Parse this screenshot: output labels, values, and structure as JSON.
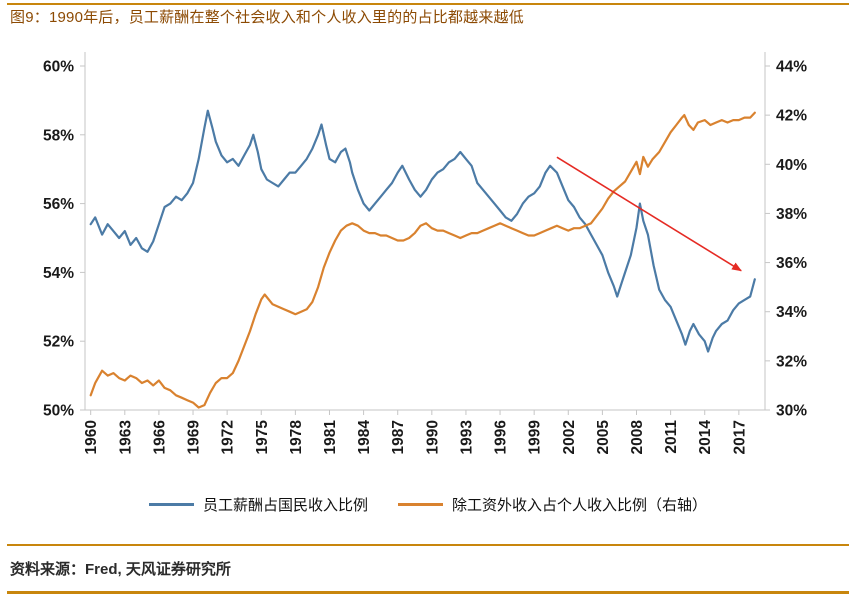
{
  "page": {
    "title": "图9：1990年后，员工薪酬在整个社会收入和个人收入里的的占比都越来越低",
    "source": "资料来源：Fred, 天风证券研究所",
    "accent_color": "#C8860D"
  },
  "chart_data": {
    "type": "line",
    "title": "图9：1990年后，员工薪酬在整个社会收入和个人收入里的的占比都越来越低",
    "x_range": [
      1959.5,
      2019.3
    ],
    "x_ticks": [
      1960,
      1963,
      1966,
      1969,
      1972,
      1975,
      1978,
      1981,
      1984,
      1987,
      1990,
      1993,
      1996,
      1999,
      2002,
      2005,
      2008,
      2011,
      2014,
      2017
    ],
    "left_axis": {
      "min": 50,
      "max": 60,
      "ticks": [
        60,
        58,
        56,
        54,
        52,
        50
      ],
      "format": "percent"
    },
    "right_axis": {
      "min": 30,
      "max": 44,
      "ticks": [
        44,
        42,
        40,
        38,
        36,
        34,
        32,
        30
      ],
      "format": "percent"
    },
    "grid": false,
    "legend_position": "bottom",
    "axis_color": "#c6c6c6",
    "tick_label_color": "#1a1a1a",
    "annotation_arrow": {
      "axis": "left",
      "from": [
        2001,
        57.35
      ],
      "to": [
        2017.2,
        54.05
      ],
      "color": "#e52b24"
    },
    "series": [
      {
        "name": "employee-compensation-share-of-national-income",
        "label": "员工薪酬占国民收入比例",
        "color": "#4C7BA6",
        "axis": "left",
        "points": [
          [
            1960,
            55.4
          ],
          [
            1960.4,
            55.6
          ],
          [
            1961,
            55.1
          ],
          [
            1961.5,
            55.4
          ],
          [
            1962,
            55.2
          ],
          [
            1962.5,
            55.0
          ],
          [
            1963,
            55.2
          ],
          [
            1963.5,
            54.8
          ],
          [
            1964,
            55.0
          ],
          [
            1964.5,
            54.7
          ],
          [
            1965,
            54.6
          ],
          [
            1965.5,
            54.9
          ],
          [
            1966,
            55.4
          ],
          [
            1966.5,
            55.9
          ],
          [
            1967,
            56.0
          ],
          [
            1967.5,
            56.2
          ],
          [
            1968,
            56.1
          ],
          [
            1968.5,
            56.3
          ],
          [
            1969,
            56.6
          ],
          [
            1969.5,
            57.3
          ],
          [
            1970,
            58.2
          ],
          [
            1970.3,
            58.7
          ],
          [
            1970.7,
            58.2
          ],
          [
            1971,
            57.8
          ],
          [
            1971.5,
            57.4
          ],
          [
            1972,
            57.2
          ],
          [
            1972.5,
            57.3
          ],
          [
            1973,
            57.1
          ],
          [
            1973.5,
            57.4
          ],
          [
            1974,
            57.7
          ],
          [
            1974.3,
            58.0
          ],
          [
            1974.7,
            57.5
          ],
          [
            1975,
            57.0
          ],
          [
            1975.5,
            56.7
          ],
          [
            1976,
            56.6
          ],
          [
            1976.5,
            56.5
          ],
          [
            1977,
            56.7
          ],
          [
            1977.5,
            56.9
          ],
          [
            1978,
            56.9
          ],
          [
            1978.5,
            57.1
          ],
          [
            1979,
            57.3
          ],
          [
            1979.5,
            57.6
          ],
          [
            1980,
            58.0
          ],
          [
            1980.3,
            58.3
          ],
          [
            1980.7,
            57.7
          ],
          [
            1981,
            57.3
          ],
          [
            1981.5,
            57.2
          ],
          [
            1982,
            57.5
          ],
          [
            1982.4,
            57.6
          ],
          [
            1982.8,
            57.2
          ],
          [
            1983,
            56.9
          ],
          [
            1983.5,
            56.4
          ],
          [
            1984,
            56.0
          ],
          [
            1984.5,
            55.8
          ],
          [
            1985,
            56.0
          ],
          [
            1985.5,
            56.2
          ],
          [
            1986,
            56.4
          ],
          [
            1986.5,
            56.6
          ],
          [
            1987,
            56.9
          ],
          [
            1987.4,
            57.1
          ],
          [
            1988,
            56.7
          ],
          [
            1988.5,
            56.4
          ],
          [
            1989,
            56.2
          ],
          [
            1989.5,
            56.4
          ],
          [
            1990,
            56.7
          ],
          [
            1990.5,
            56.9
          ],
          [
            1991,
            57.0
          ],
          [
            1991.5,
            57.2
          ],
          [
            1992,
            57.3
          ],
          [
            1992.5,
            57.5
          ],
          [
            1993,
            57.3
          ],
          [
            1993.5,
            57.1
          ],
          [
            1994,
            56.6
          ],
          [
            1994.5,
            56.4
          ],
          [
            1995,
            56.2
          ],
          [
            1995.5,
            56.0
          ],
          [
            1996,
            55.8
          ],
          [
            1996.5,
            55.6
          ],
          [
            1997,
            55.5
          ],
          [
            1997.5,
            55.7
          ],
          [
            1998,
            56.0
          ],
          [
            1998.5,
            56.2
          ],
          [
            1999,
            56.3
          ],
          [
            1999.5,
            56.5
          ],
          [
            2000,
            56.9
          ],
          [
            2000.4,
            57.1
          ],
          [
            2001,
            56.9
          ],
          [
            2001.5,
            56.5
          ],
          [
            2002,
            56.1
          ],
          [
            2002.5,
            55.9
          ],
          [
            2003,
            55.6
          ],
          [
            2003.5,
            55.4
          ],
          [
            2004,
            55.1
          ],
          [
            2004.5,
            54.8
          ],
          [
            2005,
            54.5
          ],
          [
            2005.5,
            54.0
          ],
          [
            2006,
            53.6
          ],
          [
            2006.3,
            53.3
          ],
          [
            2006.7,
            53.7
          ],
          [
            2007,
            54.0
          ],
          [
            2007.5,
            54.5
          ],
          [
            2008,
            55.3
          ],
          [
            2008.3,
            56.0
          ],
          [
            2008.6,
            55.5
          ],
          [
            2009,
            55.1
          ],
          [
            2009.5,
            54.2
          ],
          [
            2010,
            53.5
          ],
          [
            2010.5,
            53.2
          ],
          [
            2011,
            53.0
          ],
          [
            2011.5,
            52.6
          ],
          [
            2012,
            52.2
          ],
          [
            2012.3,
            51.9
          ],
          [
            2012.7,
            52.3
          ],
          [
            2013,
            52.5
          ],
          [
            2013.5,
            52.2
          ],
          [
            2014,
            52.0
          ],
          [
            2014.3,
            51.7
          ],
          [
            2014.7,
            52.1
          ],
          [
            2015,
            52.3
          ],
          [
            2015.5,
            52.5
          ],
          [
            2016,
            52.6
          ],
          [
            2016.5,
            52.9
          ],
          [
            2017,
            53.1
          ],
          [
            2017.5,
            53.2
          ],
          [
            2018,
            53.3
          ],
          [
            2018.4,
            53.8
          ]
        ]
      },
      {
        "name": "non-wage-income-share-of-personal-income",
        "label": "除工资外收入占个人收入比例（右轴）",
        "color": "#D9822F",
        "axis": "right",
        "points": [
          [
            1960,
            30.6
          ],
          [
            1960.4,
            31.1
          ],
          [
            1961,
            31.6
          ],
          [
            1961.5,
            31.4
          ],
          [
            1962,
            31.5
          ],
          [
            1962.5,
            31.3
          ],
          [
            1963,
            31.2
          ],
          [
            1963.5,
            31.4
          ],
          [
            1964,
            31.3
          ],
          [
            1964.5,
            31.1
          ],
          [
            1965,
            31.2
          ],
          [
            1965.5,
            31.0
          ],
          [
            1966,
            31.2
          ],
          [
            1966.5,
            30.9
          ],
          [
            1967,
            30.8
          ],
          [
            1967.5,
            30.6
          ],
          [
            1968,
            30.5
          ],
          [
            1968.5,
            30.4
          ],
          [
            1969,
            30.3
          ],
          [
            1969.5,
            30.1
          ],
          [
            1970,
            30.2
          ],
          [
            1970.5,
            30.7
          ],
          [
            1971,
            31.1
          ],
          [
            1971.5,
            31.3
          ],
          [
            1972,
            31.3
          ],
          [
            1972.5,
            31.5
          ],
          [
            1973,
            32.0
          ],
          [
            1973.5,
            32.6
          ],
          [
            1974,
            33.2
          ],
          [
            1974.5,
            33.9
          ],
          [
            1975,
            34.5
          ],
          [
            1975.3,
            34.7
          ],
          [
            1976,
            34.3
          ],
          [
            1976.5,
            34.2
          ],
          [
            1977,
            34.1
          ],
          [
            1977.5,
            34.0
          ],
          [
            1978,
            33.9
          ],
          [
            1978.5,
            34.0
          ],
          [
            1979,
            34.1
          ],
          [
            1979.5,
            34.4
          ],
          [
            1980,
            35.0
          ],
          [
            1980.5,
            35.8
          ],
          [
            1981,
            36.4
          ],
          [
            1981.5,
            36.9
          ],
          [
            1982,
            37.3
          ],
          [
            1982.5,
            37.5
          ],
          [
            1983,
            37.6
          ],
          [
            1983.5,
            37.5
          ],
          [
            1984,
            37.3
          ],
          [
            1984.5,
            37.2
          ],
          [
            1985,
            37.2
          ],
          [
            1985.5,
            37.1
          ],
          [
            1986,
            37.1
          ],
          [
            1986.5,
            37.0
          ],
          [
            1987,
            36.9
          ],
          [
            1987.5,
            36.9
          ],
          [
            1988,
            37.0
          ],
          [
            1988.5,
            37.2
          ],
          [
            1989,
            37.5
          ],
          [
            1989.5,
            37.6
          ],
          [
            1990,
            37.4
          ],
          [
            1990.5,
            37.3
          ],
          [
            1991,
            37.3
          ],
          [
            1991.5,
            37.2
          ],
          [
            1992,
            37.1
          ],
          [
            1992.5,
            37.0
          ],
          [
            1993,
            37.1
          ],
          [
            1993.5,
            37.2
          ],
          [
            1994,
            37.2
          ],
          [
            1994.5,
            37.3
          ],
          [
            1995,
            37.4
          ],
          [
            1995.5,
            37.5
          ],
          [
            1996,
            37.6
          ],
          [
            1996.5,
            37.5
          ],
          [
            1997,
            37.4
          ],
          [
            1997.5,
            37.3
          ],
          [
            1998,
            37.2
          ],
          [
            1998.5,
            37.1
          ],
          [
            1999,
            37.1
          ],
          [
            1999.5,
            37.2
          ],
          [
            2000,
            37.3
          ],
          [
            2000.5,
            37.4
          ],
          [
            2001,
            37.5
          ],
          [
            2001.5,
            37.4
          ],
          [
            2002,
            37.3
          ],
          [
            2002.5,
            37.4
          ],
          [
            2003,
            37.4
          ],
          [
            2003.5,
            37.5
          ],
          [
            2004,
            37.6
          ],
          [
            2004.5,
            37.9
          ],
          [
            2005,
            38.2
          ],
          [
            2005.5,
            38.6
          ],
          [
            2006,
            38.9
          ],
          [
            2006.5,
            39.1
          ],
          [
            2007,
            39.3
          ],
          [
            2007.5,
            39.7
          ],
          [
            2008,
            40.1
          ],
          [
            2008.3,
            39.6
          ],
          [
            2008.6,
            40.3
          ],
          [
            2009,
            39.9
          ],
          [
            2009.4,
            40.2
          ],
          [
            2010,
            40.5
          ],
          [
            2010.5,
            40.9
          ],
          [
            2011,
            41.3
          ],
          [
            2011.5,
            41.6
          ],
          [
            2012,
            41.9
          ],
          [
            2012.2,
            42.0
          ],
          [
            2012.6,
            41.6
          ],
          [
            2013,
            41.4
          ],
          [
            2013.4,
            41.7
          ],
          [
            2014,
            41.8
          ],
          [
            2014.5,
            41.6
          ],
          [
            2015,
            41.7
          ],
          [
            2015.5,
            41.8
          ],
          [
            2016,
            41.7
          ],
          [
            2016.5,
            41.8
          ],
          [
            2017,
            41.8
          ],
          [
            2017.5,
            41.9
          ],
          [
            2018,
            41.9
          ],
          [
            2018.4,
            42.1
          ]
        ]
      }
    ]
  }
}
